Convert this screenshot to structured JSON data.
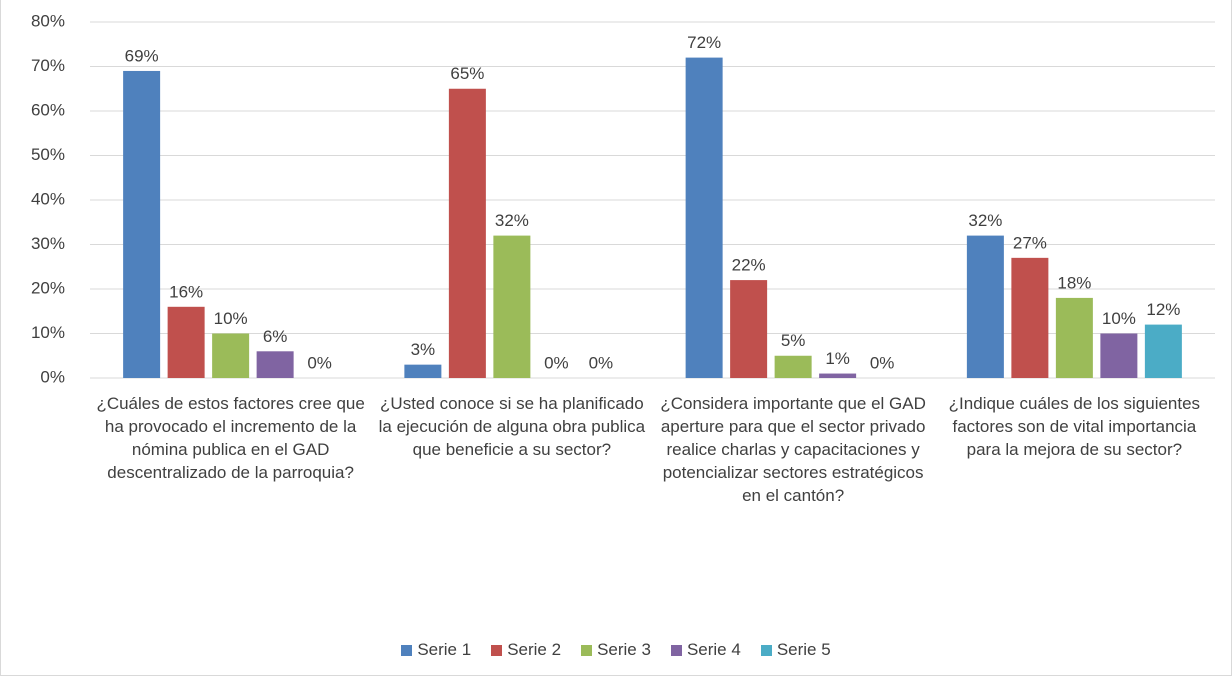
{
  "chart_data": {
    "type": "bar",
    "categories": [
      "¿Cuáles de estos factores cree que ha provocado el incremento de la nómina publica en el GAD descentralizado de la parroquia?",
      "¿Usted conoce si se ha planificado la ejecución de alguna obra publica que beneficie a su sector?",
      "¿Considera importante que el GAD aperture para que el sector privado realice charlas y capacitaciones y potencializar sectores estratégicos en el cantón?",
      "¿Indique cuáles de los siguientes factores son de vital importancia para la mejora de su sector?"
    ],
    "series": [
      {
        "name": "Serie 1",
        "color": "#4f81bd",
        "values": [
          69,
          3,
          72,
          32
        ],
        "value_labels": [
          "69%",
          "3%",
          "72%",
          "32%"
        ]
      },
      {
        "name": "Serie 2",
        "color": "#c0504d",
        "values": [
          16,
          65,
          22,
          27
        ],
        "value_labels": [
          "16%",
          "65%",
          "22%",
          "27%"
        ]
      },
      {
        "name": "Serie 3",
        "color": "#9bbb59",
        "values": [
          10,
          32,
          5,
          18
        ],
        "value_labels": [
          "10%",
          "32%",
          "5%",
          "18%"
        ]
      },
      {
        "name": "Serie 4",
        "color": "#8064a2",
        "values": [
          6,
          0,
          1,
          10
        ],
        "value_labels": [
          "6%",
          "0%",
          "1%",
          "10%"
        ]
      },
      {
        "name": "Serie 5",
        "color": "#4bacc6",
        "values": [
          0,
          0,
          0,
          12
        ],
        "value_labels": [
          "0%",
          "0%",
          "0%",
          "12%"
        ]
      }
    ],
    "ylim": [
      0,
      80
    ],
    "yticks": [
      {
        "value": 0,
        "label": "0%"
      },
      {
        "value": 10,
        "label": "10%"
      },
      {
        "value": 20,
        "label": "20%"
      },
      {
        "value": 30,
        "label": "30%"
      },
      {
        "value": 40,
        "label": "40%"
      },
      {
        "value": 50,
        "label": "50%"
      },
      {
        "value": 60,
        "label": "60%"
      },
      {
        "value": 70,
        "label": "70%"
      },
      {
        "value": 80,
        "label": "80%"
      }
    ],
    "grid": true,
    "legend": "bottom"
  }
}
